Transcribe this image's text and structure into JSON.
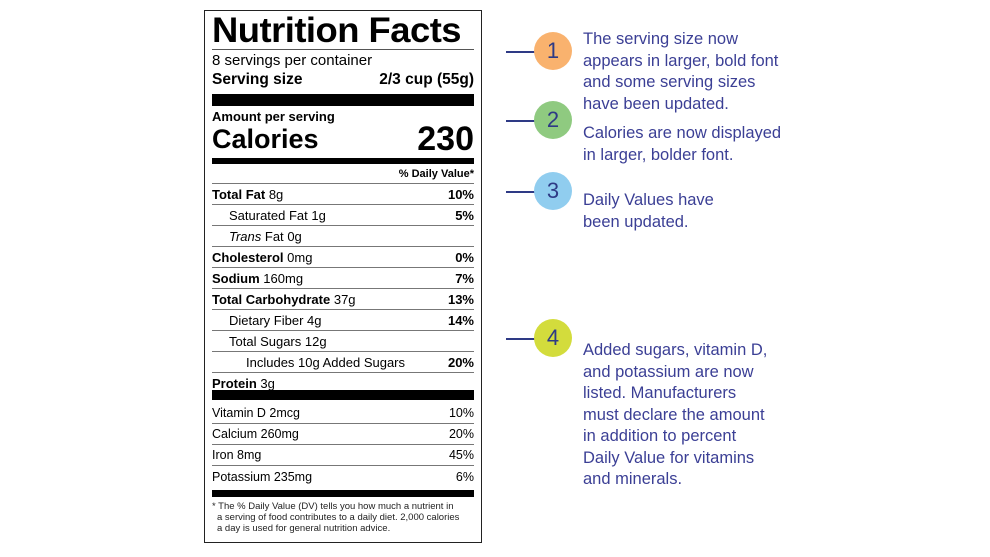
{
  "label": {
    "title": "Nutrition Facts",
    "servings": "8 servings per container",
    "serving_size_label": "Serving size",
    "serving_size_value": "2/3 cup (55g)",
    "amount_per_serving": "Amount per serving",
    "calories_label": "Calories",
    "calories_value": "230",
    "dv_header": "% Daily Value*",
    "nutrients": [
      {
        "name": "Total Fat",
        "amount": "8g",
        "dv": "10%",
        "bold": true,
        "indent": 0
      },
      {
        "name": "Saturated Fat",
        "amount": "1g",
        "dv": "5%",
        "bold": false,
        "indent": 1
      },
      {
        "name": "Trans",
        "name2": "Fat",
        "amount": "0g",
        "dv": "",
        "bold": false,
        "indent": 1
      },
      {
        "name": "Cholesterol",
        "amount": "0mg",
        "dv": "0%",
        "bold": true,
        "indent": 0
      },
      {
        "name": "Sodium",
        "amount": "160mg",
        "dv": "7%",
        "bold": true,
        "indent": 0
      },
      {
        "name": "Total Carbohydrate",
        "amount": "37g",
        "dv": "13%",
        "bold": true,
        "indent": 0
      },
      {
        "name": "Dietary Fiber",
        "amount": "4g",
        "dv": "14%",
        "bold": false,
        "indent": 1
      },
      {
        "name": "Total Sugars",
        "amount": "12g",
        "dv": "",
        "bold": false,
        "indent": 1
      },
      {
        "name": "Includes 10g Added Sugars",
        "amount": "",
        "dv": "20%",
        "bold": false,
        "indent": 2
      },
      {
        "name": "Protein",
        "amount": "3g",
        "dv": "",
        "bold": true,
        "indent": 0
      }
    ],
    "vitamins": [
      {
        "name": "Vitamin D 2mcg",
        "dv": "10%"
      },
      {
        "name": "Calcium 260mg",
        "dv": "20%"
      },
      {
        "name": "Iron 8mg",
        "dv": "45%"
      },
      {
        "name": "Potassium 235mg",
        "dv": "6%"
      }
    ],
    "footnote": [
      "* The % Daily Value (DV) tells you how much a nutrient in",
      "a serving of food contributes to a daily diet. 2,000 calories",
      "a day is used for general nutrition advice."
    ]
  },
  "notes": [
    {
      "number": "1",
      "color": "#f9b26e",
      "lines": [
        "The serving size now",
        "appears in larger, bold font",
        "and some serving sizes",
        "have been updated."
      ]
    },
    {
      "number": "2",
      "color": "#8fca80",
      "lines": [
        "Calories are now displayed",
        "in larger, bolder font."
      ]
    },
    {
      "number": "3",
      "color": "#90cdef",
      "lines": [
        "Daily Values have",
        "been updated."
      ]
    },
    {
      "number": "4",
      "color": "#d3dc3c",
      "lines": [
        "Added sugars, vitamin D,",
        "and potassium are now",
        "listed. Manufacturers",
        "must declare the amount",
        "in addition to percent",
        "Daily Value for vitamins",
        "and minerals."
      ]
    }
  ]
}
